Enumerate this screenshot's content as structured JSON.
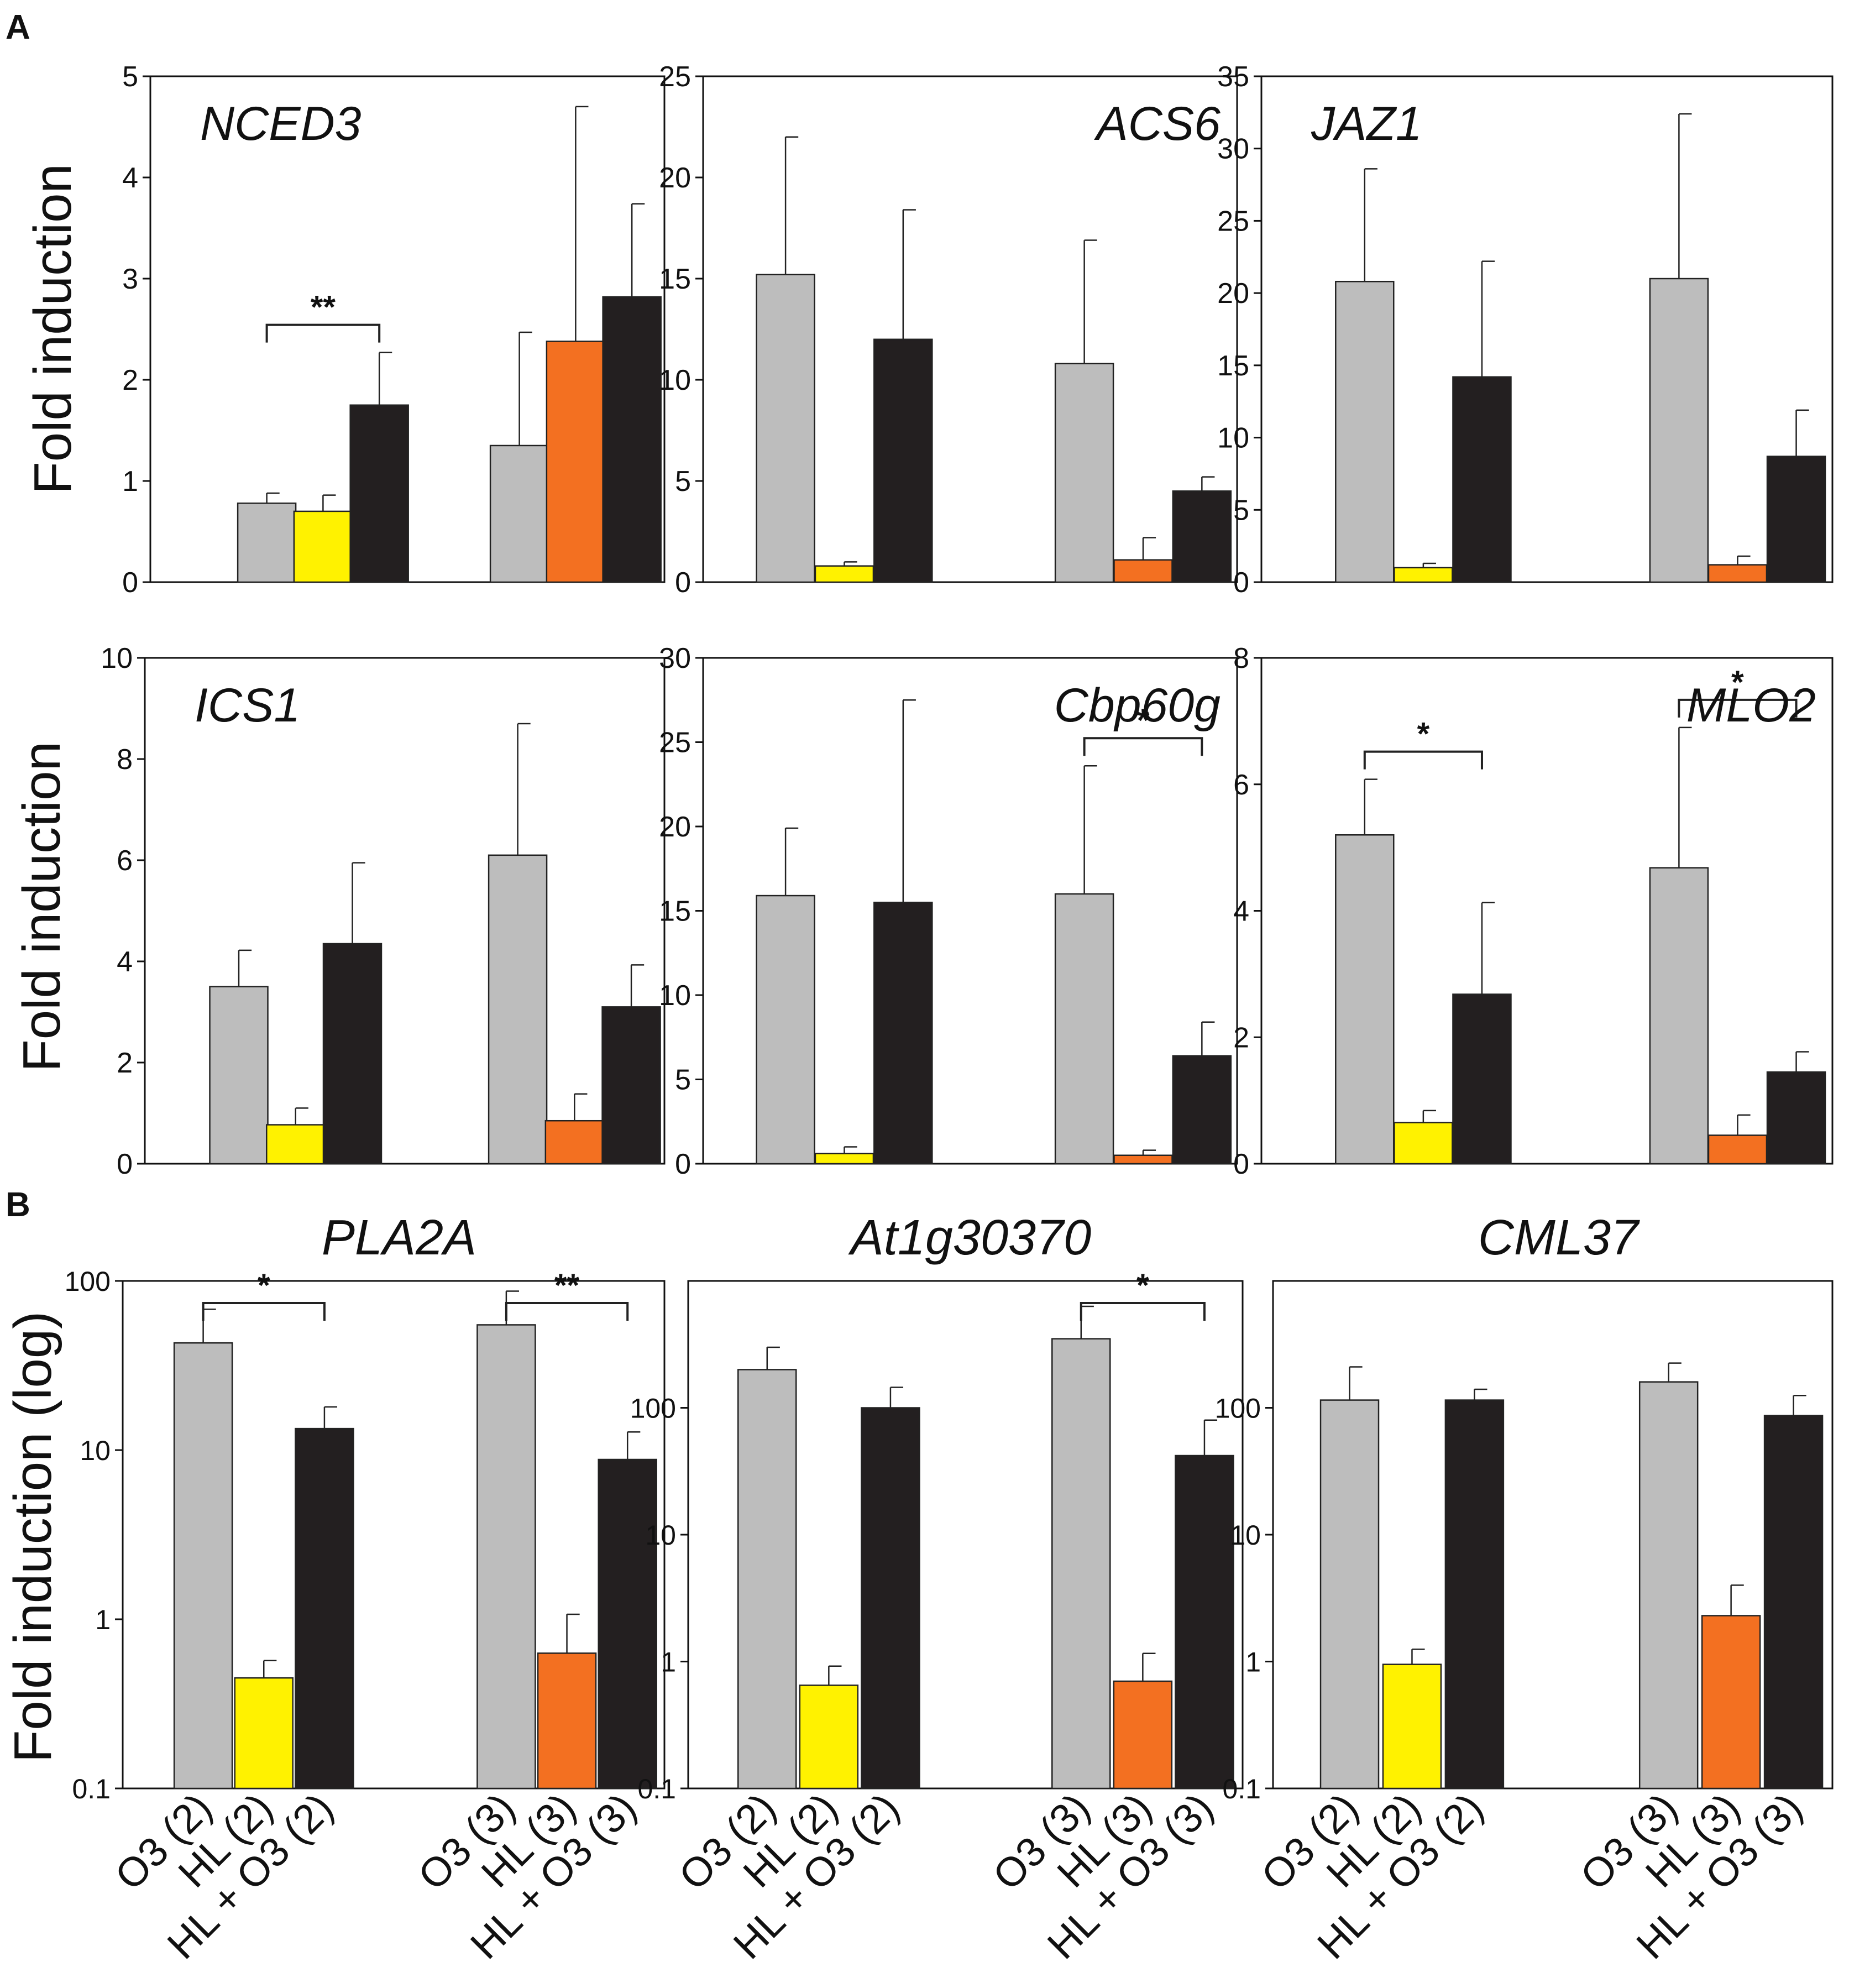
{
  "figure": {
    "panel_labels": [
      "A",
      "B"
    ],
    "ylabel_a": "Fold induction",
    "ylabel_b": "Fold induction (log)",
    "x_categories": [
      "O3 (2)",
      "HL (2)",
      "HL + O3 (2)",
      "O3 (3)",
      "HL (3)",
      "HL + O3 (3)"
    ],
    "colors": {
      "O3": "#bdbdbd",
      "HL_2": "#fff200",
      "HL_3": "#f37021",
      "HL_O3": "#231f20",
      "axis": "#111111"
    }
  },
  "chart_data": [
    {
      "type": "bar",
      "panel": "A",
      "gene": "NCED3",
      "scale": "linear",
      "ylim": [
        0,
        5
      ],
      "yticks": [
        0,
        1,
        2,
        3,
        4,
        5
      ],
      "categories": [
        "O3 (2)",
        "HL (2)",
        "HL + O3 (2)",
        "O3 (3)",
        "HL (3)",
        "HL + O3 (3)"
      ],
      "values": [
        0.78,
        0.7,
        1.75,
        1.35,
        2.38,
        2.82
      ],
      "errors": [
        0.1,
        0.16,
        0.52,
        1.12,
        2.32,
        0.92
      ],
      "significance": [
        {
          "from": 0,
          "to": 2,
          "label": "**"
        }
      ]
    },
    {
      "type": "bar",
      "panel": "A",
      "gene": "ACS6",
      "scale": "linear",
      "ylim": [
        0,
        25
      ],
      "yticks": [
        0,
        5,
        10,
        15,
        20,
        25
      ],
      "categories": [
        "O3 (2)",
        "HL (2)",
        "HL + O3 (2)",
        "O3 (3)",
        "HL (3)",
        "HL + O3 (3)"
      ],
      "values": [
        15.2,
        0.8,
        12.0,
        10.8,
        1.1,
        4.5
      ],
      "errors": [
        6.8,
        0.2,
        6.4,
        6.1,
        1.1,
        0.7
      ],
      "significance": []
    },
    {
      "type": "bar",
      "panel": "A",
      "gene": "JAZ1",
      "scale": "linear",
      "ylim": [
        0,
        35
      ],
      "yticks": [
        0,
        5,
        10,
        15,
        20,
        25,
        30,
        35
      ],
      "categories": [
        "O3 (2)",
        "HL (2)",
        "HL + O3 (2)",
        "O3 (3)",
        "HL (3)",
        "HL + O3 (3)"
      ],
      "values": [
        20.8,
        1.0,
        14.2,
        21.0,
        1.2,
        8.7
      ],
      "errors": [
        7.8,
        0.3,
        8.0,
        11.4,
        0.6,
        3.2
      ],
      "significance": []
    },
    {
      "type": "bar",
      "panel": "A",
      "gene": "ICS1",
      "scale": "linear",
      "ylim": [
        0,
        10
      ],
      "yticks": [
        0,
        2,
        4,
        6,
        8,
        10
      ],
      "categories": [
        "O3 (2)",
        "HL (2)",
        "HL + O3 (2)",
        "O3 (3)",
        "HL (3)",
        "HL + O3 (3)"
      ],
      "values": [
        3.5,
        0.77,
        4.35,
        6.1,
        0.85,
        3.1
      ],
      "errors": [
        0.72,
        0.33,
        1.6,
        2.6,
        0.53,
        0.83
      ],
      "significance": []
    },
    {
      "type": "bar",
      "panel": "A",
      "gene": "Cbp60g",
      "scale": "linear",
      "ylim": [
        0,
        30
      ],
      "yticks": [
        0,
        5,
        10,
        15,
        20,
        25,
        30
      ],
      "categories": [
        "O3 (2)",
        "HL (2)",
        "HL + O3 (2)",
        "O3 (3)",
        "HL (3)",
        "HL + O3 (3)"
      ],
      "values": [
        15.9,
        0.6,
        15.5,
        16.0,
        0.5,
        6.4
      ],
      "errors": [
        4.0,
        0.4,
        12.0,
        7.6,
        0.3,
        2.0
      ],
      "significance": [
        {
          "from": 3,
          "to": 5,
          "label": "*"
        }
      ]
    },
    {
      "type": "bar",
      "panel": "A",
      "gene": "MLO2",
      "scale": "linear",
      "ylim": [
        0,
        8
      ],
      "yticks": [
        0,
        2,
        4,
        6,
        8
      ],
      "categories": [
        "O3 (2)",
        "HL (2)",
        "HL + O3 (2)",
        "O3 (3)",
        "HL (3)",
        "HL + O3 (3)"
      ],
      "values": [
        5.2,
        0.65,
        2.68,
        4.68,
        0.45,
        1.45
      ],
      "errors": [
        0.88,
        0.19,
        1.45,
        2.22,
        0.32,
        0.32
      ],
      "significance": [
        {
          "from": 0,
          "to": 2,
          "label": "*"
        },
        {
          "from": 3,
          "to": 5,
          "label": "*"
        }
      ]
    },
    {
      "type": "bar",
      "panel": "B",
      "gene": "PLA2A",
      "scale": "log",
      "ylim": [
        0.1,
        100
      ],
      "yticks": [
        0.1,
        1,
        10,
        100
      ],
      "categories": [
        "O3 (2)",
        "HL (2)",
        "HL + O3 (2)",
        "O3 (3)",
        "HL (3)",
        "HL + O3 (3)"
      ],
      "values": [
        43,
        0.45,
        13.4,
        55,
        0.63,
        8.8
      ],
      "errors": [
        25,
        0.12,
        4.6,
        32,
        0.44,
        4.0
      ],
      "significance": [
        {
          "from": 0,
          "to": 2,
          "label": "*"
        },
        {
          "from": 3,
          "to": 5,
          "label": "**"
        }
      ]
    },
    {
      "type": "bar",
      "panel": "B",
      "gene": "At1g30370",
      "scale": "log",
      "ylim": [
        0.1,
        1000
      ],
      "yticks": [
        0.1,
        1,
        10,
        100
      ],
      "categories": [
        "O3 (2)",
        "HL (2)",
        "HL + O3 (2)",
        "O3 (3)",
        "HL (3)",
        "HL + O3 (3)"
      ],
      "values": [
        200,
        0.65,
        100,
        350,
        0.7,
        42
      ],
      "errors": [
        100,
        0.27,
        45,
        280,
        0.46,
        38
      ],
      "significance": [
        {
          "from": 3,
          "to": 5,
          "label": "*"
        }
      ]
    },
    {
      "type": "bar",
      "panel": "B",
      "gene": "CML37",
      "scale": "log",
      "ylim": [
        0.1,
        1000
      ],
      "yticks": [
        0.1,
        1,
        10,
        100
      ],
      "categories": [
        "O3 (2)",
        "HL (2)",
        "HL + O3 (2)",
        "O3 (3)",
        "HL (3)",
        "HL + O3 (3)"
      ],
      "values": [
        115,
        0.95,
        115,
        160,
        2.3,
        87
      ],
      "errors": [
        95,
        0.3,
        25,
        65,
        1.7,
        38
      ],
      "significance": []
    }
  ]
}
